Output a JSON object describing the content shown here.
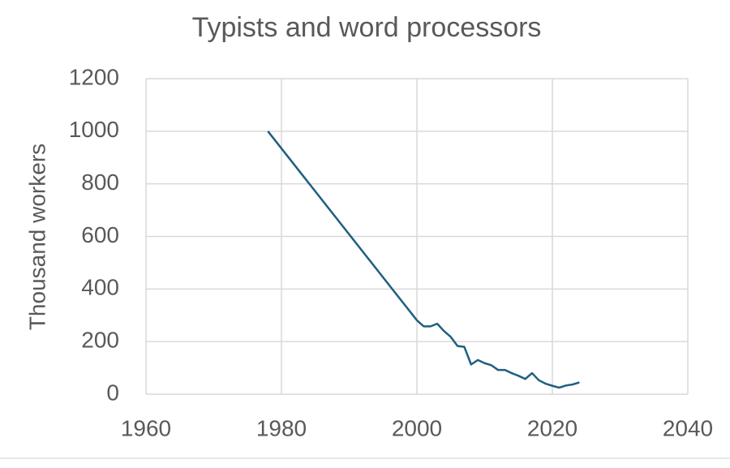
{
  "chart_data": {
    "type": "line",
    "title": "Typists and word processors",
    "y_label": "Thousand workers",
    "x": [
      1978,
      2000,
      2001,
      2002,
      2003,
      2004,
      2005,
      2006,
      2007,
      2008,
      2009,
      2010,
      2011,
      2012,
      2013,
      2014,
      2015,
      2016,
      2017,
      2018,
      2019,
      2020,
      2021,
      2022,
      2023,
      2024
    ],
    "series": [
      {
        "name": "Typists and word processors",
        "color": "#1f5f7f",
        "values": [
          1000,
          281,
          258,
          258,
          268,
          240,
          218,
          183,
          180,
          113,
          130,
          118,
          110,
          92,
          92,
          80,
          70,
          58,
          80,
          53,
          40,
          32,
          25,
          33,
          37,
          45
        ]
      }
    ],
    "xlim": [
      1960,
      2040
    ],
    "xticks": [
      1960,
      1980,
      2000,
      2020,
      2040
    ],
    "ylim": [
      0,
      1200
    ],
    "yticks": [
      0,
      200,
      400,
      600,
      800,
      1000,
      1200
    ],
    "grid": true
  }
}
